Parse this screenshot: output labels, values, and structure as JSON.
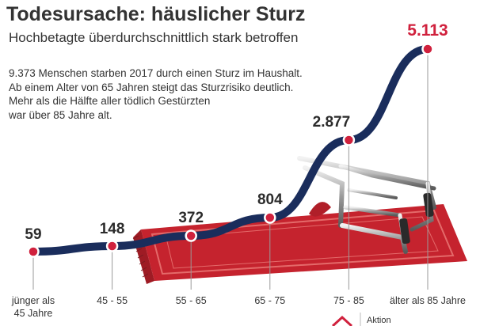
{
  "header": {
    "title": "Todesursache: häuslicher Sturz",
    "subtitle": "Hochbetagte überdurchschnittlich stark betroffen"
  },
  "description": [
    "9.373 Menschen starben 2017 durch einen Sturz im Haushalt.",
    "Ab einem Alter von 65 Jahren steigt das Sturzrisiko deutlich.",
    "Mehr als die Hälfte aller tödlich Gestürzten",
    "war über 85 Jahre alt."
  ],
  "logo": {
    "text": "Aktion"
  },
  "colors": {
    "line": "#1a2d5c",
    "marker": "#d0213d",
    "rug": "#c5232e",
    "highlight": "#d0213d"
  },
  "icons": [
    "rug-illustration",
    "walker-illustration",
    "house-logo-icon"
  ],
  "chart_data": {
    "type": "line",
    "categories": [
      "jünger als 45 Jahre",
      "45 - 55",
      "55 - 65",
      "65 - 75",
      "75 - 85",
      "älter als 85 Jahre"
    ],
    "category_lines": [
      [
        "jünger als",
        "45 Jahre"
      ],
      [
        "45 - 55"
      ],
      [
        "55 - 65"
      ],
      [
        "65 - 75"
      ],
      [
        "75 - 85"
      ],
      [
        "älter als 85 Jahre"
      ]
    ],
    "values": [
      59,
      148,
      372,
      804,
      2877,
      5113
    ],
    "value_labels": [
      "59",
      "148",
      "372",
      "804",
      "2.877",
      "5.113"
    ],
    "title": "Todesursache: häuslicher Sturz",
    "subtitle": "Hochbetagte überdurchschnittlich stark betroffen",
    "xlabel": "",
    "ylabel": "",
    "ylim": [
      0,
      5113
    ],
    "grid": false,
    "legend": "none"
  }
}
